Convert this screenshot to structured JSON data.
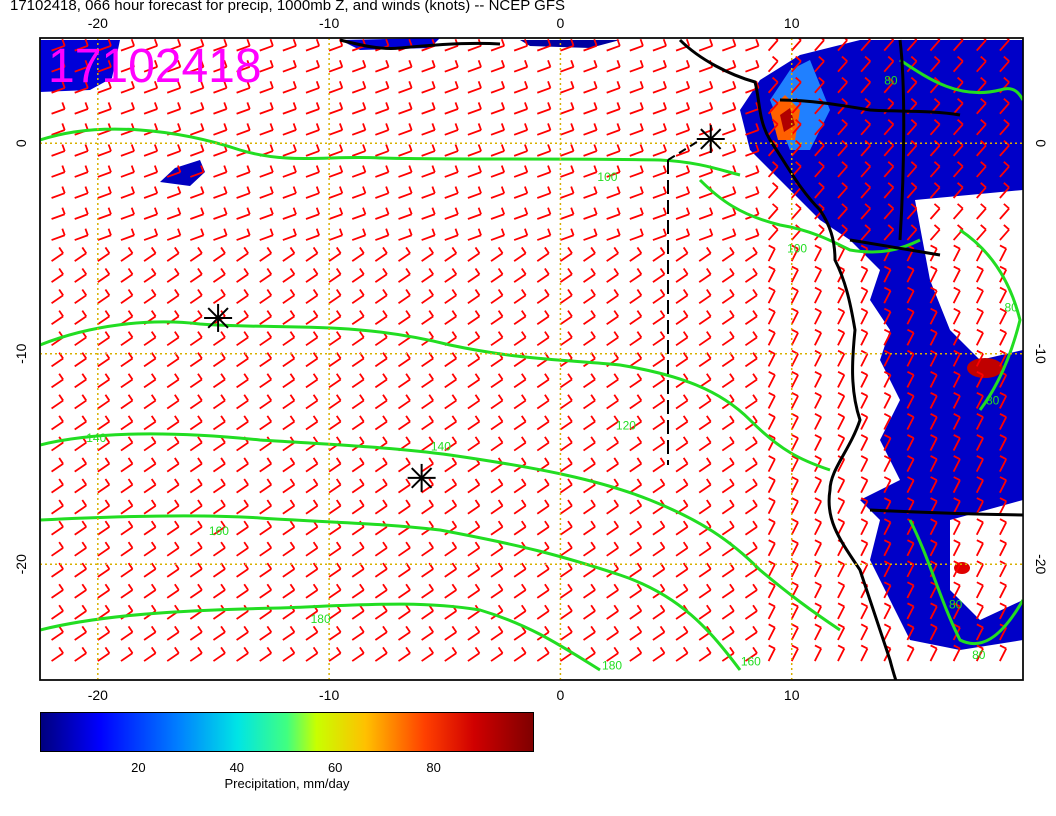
{
  "title": "17102418, 066 hour forecast for precip, 1000mb Z, and winds (knots) -- NCEP GFS",
  "stamp": "17102418",
  "map": {
    "lon_range": [
      -22.5,
      20
    ],
    "lat_range": [
      -25.5,
      5
    ],
    "lon_ticks": [
      "-20",
      "-10",
      "0",
      "10"
    ],
    "lat_ticks": [
      "0",
      "-10",
      "-20"
    ],
    "grid_style": "dotted-yellow",
    "wind_barb_color": "#ff0000",
    "height_contour_color": "#22dd22",
    "coastline_color": "#000000",
    "height_contours": [
      {
        "label": "100",
        "label_lon": 1.6,
        "label_lat": -1.8
      },
      {
        "label": "120",
        "label_lon": 2.4,
        "label_lat": -13.6
      },
      {
        "label": "140",
        "label_lon": -20.5,
        "label_lat": -14.2
      },
      {
        "label": "140",
        "label_lon": -5.6,
        "label_lat": -14.6
      },
      {
        "label": "160",
        "label_lon": -15.2,
        "label_lat": -18.6
      },
      {
        "label": "180",
        "label_lon": -10.8,
        "label_lat": -22.8
      },
      {
        "label": "180",
        "label_lon": 1.8,
        "label_lat": -25.0
      },
      {
        "label": "160",
        "label_lon": 7.8,
        "label_lat": -24.8
      },
      {
        "label": "100",
        "label_lon": 9.8,
        "label_lat": -5.2
      },
      {
        "label": "80",
        "label_lon": 14.0,
        "label_lat": 2.8
      },
      {
        "label": "80",
        "label_lon": 18.4,
        "label_lat": -12.4
      },
      {
        "label": "80",
        "label_lon": 16.8,
        "label_lat": -22.1
      },
      {
        "label": "80",
        "label_lon": 19.2,
        "label_lat": -8.0
      },
      {
        "label": "80",
        "label_lon": 17.8,
        "label_lat": -24.5
      }
    ],
    "pressure_centers": [
      {
        "lon": -14.8,
        "lat": -8.3
      },
      {
        "lon": -6.0,
        "lat": -15.9
      },
      {
        "lon": 6.5,
        "lat": 0.2
      }
    ]
  },
  "colorbar": {
    "label": "Precipitation, mm/day",
    "range": [
      0,
      100
    ],
    "ticks": [
      {
        "value": 20,
        "label": "20"
      },
      {
        "value": 40,
        "label": "40"
      },
      {
        "value": 60,
        "label": "60"
      },
      {
        "value": 80,
        "label": "80"
      }
    ]
  }
}
